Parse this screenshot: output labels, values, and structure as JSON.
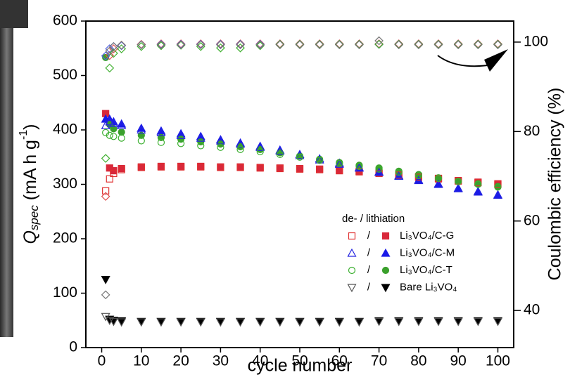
{
  "chart_data": {
    "type": "scatter",
    "x_label": "cycle number",
    "y_label": {
      "symbol": "Q",
      "subscript": "spec",
      "unit": " (mA h g",
      "exponent": "-1",
      "close": ")"
    },
    "y2_label": "Coulombic efficiency (%)",
    "legend_title": "de- / lithiation",
    "legend_separator": "/",
    "x": [
      1,
      2,
      3,
      5,
      10,
      15,
      20,
      25,
      30,
      35,
      40,
      45,
      50,
      55,
      60,
      65,
      70,
      75,
      80,
      85,
      90,
      95,
      100
    ],
    "xlim": [
      -4,
      104
    ],
    "xticks": [
      0,
      10,
      20,
      30,
      40,
      50,
      60,
      70,
      80,
      90,
      100
    ],
    "ylim": [
      0,
      600
    ],
    "yticks": [
      0,
      100,
      200,
      300,
      400,
      500,
      600
    ],
    "y2lim": [
      31.7,
      104.7
    ],
    "y2ticks": [
      40,
      60,
      80,
      100
    ],
    "series": [
      {
        "name": "Li₃VO₄/C-G",
        "marker": "square",
        "color": "#e03030",
        "lithiation_color": "#d8283a",
        "efficiency_color": "#e05050",
        "delithiation": [
          288,
          310,
          320,
          327,
          331,
          332,
          332,
          332,
          331,
          331,
          330,
          329,
          328,
          327,
          325,
          323,
          320,
          317,
          313,
          310,
          306,
          303,
          300
        ],
        "lithiation": [
          430,
          330,
          325,
          329,
          332,
          333,
          333,
          333,
          332,
          332,
          331,
          330,
          329,
          328,
          326,
          324,
          321,
          318,
          314,
          311,
          307,
          304,
          301
        ],
        "efficiency": [
          65.5,
          97,
          98.5,
          99.3,
          99.5,
          99.6,
          99.6,
          99.6,
          99.6,
          99.6,
          99.6,
          99.6,
          99.6,
          99.6,
          99.6,
          99.6,
          99.6,
          99.6,
          99.6,
          99.6,
          99.6,
          99.6,
          99.6
        ]
      },
      {
        "name": "Li₃VO₄/C-M",
        "marker": "triangle",
        "color": "#2424e0",
        "lithiation_color": "#1a1ae8",
        "efficiency_color": "#5060e0",
        "delithiation": [
          408,
          415,
          412,
          408,
          400,
          395,
          390,
          385,
          380,
          374,
          368,
          361,
          353,
          345,
          337,
          330,
          322,
          315,
          307,
          300,
          292,
          286,
          280
        ],
        "lithiation": [
          420,
          420,
          415,
          411,
          403,
          398,
          393,
          388,
          382,
          376,
          370,
          363,
          355,
          347,
          339,
          331,
          323,
          316,
          308,
          301,
          293,
          287,
          281
        ],
        "efficiency": [
          96.9,
          98.5,
          99,
          99.2,
          99.4,
          99.5,
          99.5,
          99.5,
          99.5,
          99.5,
          99.5,
          99.5,
          99.5,
          99.5,
          99.5,
          99.5,
          99.5,
          99.5,
          99.5,
          99.5,
          99.5,
          99.5,
          99.5
        ]
      },
      {
        "name": "Li₃VO₄/C-T",
        "marker": "circle",
        "color": "#3cb030",
        "lithiation_color": "#3aa02c",
        "efficiency_color": "#40b030",
        "delithiation": [
          395,
          390,
          388,
          385,
          380,
          377,
          375,
          371,
          368,
          364,
          360,
          355,
          350,
          344,
          338,
          333,
          328,
          322,
          316,
          311,
          305,
          300,
          295
        ],
        "lithiation": [
          533,
          410,
          402,
          396,
          390,
          386,
          383,
          378,
          374,
          369,
          364,
          358,
          352,
          346,
          340,
          335,
          330,
          324,
          318,
          312,
          306,
          301,
          296
        ],
        "efficiency": [
          74,
          94.2,
          97.5,
          98.5,
          99,
          99.2,
          99.3,
          99,
          98.7,
          98.7,
          99.2,
          99.5,
          99.5,
          99.5,
          99.5,
          99.5,
          99.5,
          99.5,
          99.5,
          99.5,
          99.5,
          99.5,
          99.5
        ]
      },
      {
        "name": "Bare Li₃VO₄",
        "marker": "triangle-down",
        "color": "#555555",
        "lithiation_color": "#000000",
        "efficiency_color": "#777777",
        "delithiation": [
          57,
          50,
          48,
          47,
          47,
          47,
          47,
          47,
          47,
          47,
          47,
          47,
          47,
          47,
          47,
          47,
          48,
          48,
          48,
          48,
          48,
          48,
          48
        ],
        "lithiation": [
          125,
          52,
          50,
          49,
          48,
          48,
          48,
          48,
          48,
          48,
          48,
          48,
          48,
          48,
          48,
          48,
          49,
          49,
          49,
          49,
          49,
          49,
          49
        ],
        "efficiency": [
          43.5,
          98,
          99,
          99.3,
          99.4,
          99.4,
          99.4,
          99.4,
          99.4,
          99.4,
          99.4,
          99.4,
          99.4,
          99.4,
          99.4,
          99.4,
          100.3,
          99.4,
          99.4,
          99.4,
          99.4,
          99.4,
          99.4
        ]
      }
    ]
  }
}
